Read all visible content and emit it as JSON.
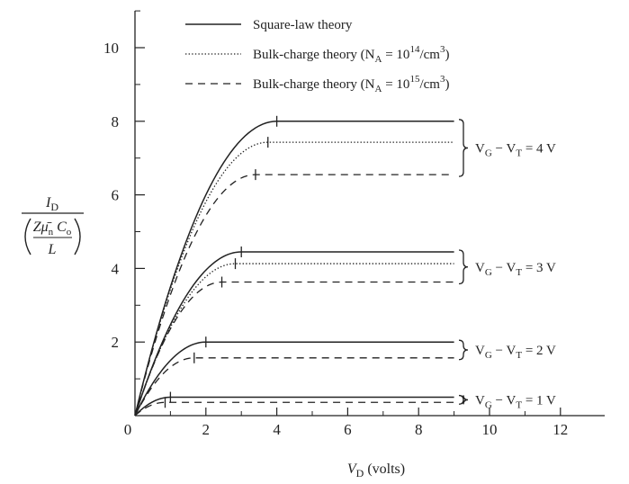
{
  "chart_data": {
    "type": "line",
    "x_label": {
      "main": "V",
      "sub": "D",
      "rest": " (volts)"
    },
    "y_label": {
      "numerator": {
        "main": "I",
        "sub": "D"
      },
      "denominator": {
        "top": {
          "z": "Z",
          "mu": "μ̄",
          "mu_sub": "n",
          "c": " C",
          "c_sub": "o"
        },
        "bottom": "L"
      }
    },
    "x_ticks": [
      "0",
      "2",
      "4",
      "6",
      "8",
      "10",
      "12"
    ],
    "y_ticks": [
      "2",
      "4",
      "6",
      "8",
      "10"
    ],
    "xlim": [
      0,
      13
    ],
    "ylim": [
      0,
      11
    ],
    "legend": [
      {
        "style": "solid",
        "text": "Square-law theory"
      },
      {
        "style": "dotted",
        "text": "Bulk-charge theory (N",
        "sub": "A",
        "mid": " = 10",
        "sup": "14",
        "end": "/cm",
        "sup2": "3",
        "close": ")"
      },
      {
        "style": "dashed",
        "text": "Bulk-charge theory (N",
        "sub": "A",
        "mid": " = 10",
        "sup": "15",
        "end": "/cm",
        "sup2": "3",
        "close": ")"
      }
    ],
    "groups": [
      {
        "label": {
          "v": "V",
          "g": "G",
          "mid": " − V",
          "t": "T",
          "end": " = 4 V"
        },
        "curves": [
          {
            "style": "solid",
            "vdsat": 4.0,
            "idsat": 8.0
          },
          {
            "style": "dotted",
            "vdsat": 3.75,
            "idsat": 7.43
          },
          {
            "style": "dashed",
            "vdsat": 3.4,
            "idsat": 6.55
          }
        ]
      },
      {
        "label": {
          "v": "V",
          "g": "G",
          "mid": " − V",
          "t": "T",
          "end": " = 3 V"
        },
        "curves": [
          {
            "style": "solid",
            "vdsat": 3.0,
            "idsat": 4.45
          },
          {
            "style": "dotted",
            "vdsat": 2.83,
            "idsat": 4.13
          },
          {
            "style": "dashed",
            "vdsat": 2.45,
            "idsat": 3.63
          }
        ]
      },
      {
        "label": {
          "v": "V",
          "g": "G",
          "mid": " − V",
          "t": "T",
          "end": " = 2 V"
        },
        "curves": [
          {
            "style": "solid",
            "vdsat": 2.0,
            "idsat": 2.0
          },
          {
            "style": "dashed",
            "vdsat": 1.67,
            "idsat": 1.57
          }
        ]
      },
      {
        "label": {
          "v": "V",
          "g": "G",
          "mid": " − V",
          "t": "T",
          "end": " = 1 V"
        },
        "curves": [
          {
            "style": "solid",
            "vdsat": 1.0,
            "idsat": 0.5
          },
          {
            "style": "dashed",
            "vdsat": 0.85,
            "idsat": 0.36
          }
        ]
      }
    ],
    "vd_end": 9.0,
    "grid": false
  }
}
